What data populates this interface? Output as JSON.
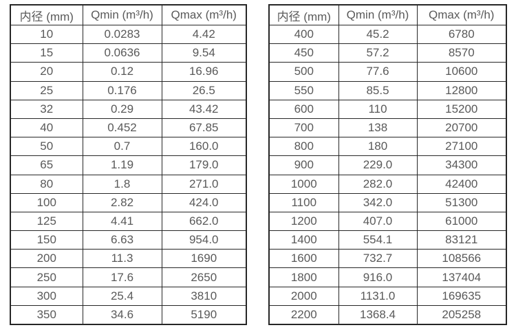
{
  "page": {
    "background_color": "#ffffff",
    "text_color": "#595959",
    "border_color": "#262626"
  },
  "tables": [
    {
      "id": "spec-table-dn10-350",
      "headers": [
        "内径 (mm)",
        "Qmin (m³/h)",
        "Qmax (m³/h)"
      ],
      "rows": [
        [
          "10",
          "0.0283",
          "4.42"
        ],
        [
          "15",
          "0.0636",
          "9.54"
        ],
        [
          "20",
          "0.12",
          "16.96"
        ],
        [
          "25",
          "0.176",
          "26.5"
        ],
        [
          "32",
          "0.29",
          "43.42"
        ],
        [
          "40",
          "0.452",
          "67.85"
        ],
        [
          "50",
          "0.7",
          "160.0"
        ],
        [
          "65",
          "1.19",
          "179.0"
        ],
        [
          "80",
          "1.8",
          "271.0"
        ],
        [
          "100",
          "2.82",
          "424.0"
        ],
        [
          "125",
          "4.41",
          "662.0"
        ],
        [
          "150",
          "6.63",
          "954.0"
        ],
        [
          "200",
          "11.3",
          "1690"
        ],
        [
          "250",
          "17.6",
          "2650"
        ],
        [
          "300",
          "25.4",
          "3810"
        ],
        [
          "350",
          "34.6",
          "5190"
        ]
      ]
    },
    {
      "id": "spec-table-dn400-2200",
      "headers": [
        "内径 (mm)",
        "Qmin (m³/h)",
        "Qmax (m³/h)"
      ],
      "rows": [
        [
          "400",
          "45.2",
          "6780"
        ],
        [
          "450",
          "57.2",
          "8570"
        ],
        [
          "500",
          "77.6",
          "10600"
        ],
        [
          "550",
          "85.5",
          "12800"
        ],
        [
          "600",
          "110",
          "15200"
        ],
        [
          "700",
          "138",
          "20700"
        ],
        [
          "800",
          "180",
          "27100"
        ],
        [
          "900",
          "229.0",
          "34300"
        ],
        [
          "1000",
          "282.0",
          "42400"
        ],
        [
          "1100",
          "342.0",
          "51300"
        ],
        [
          "1200",
          "407.0",
          "61000"
        ],
        [
          "1400",
          "554.1",
          "83121"
        ],
        [
          "1600",
          "732.7",
          "108566"
        ],
        [
          "1800",
          "916.0",
          "137404"
        ],
        [
          "2000",
          "1131.0",
          "169635"
        ],
        [
          "2200",
          "1368.4",
          "205258"
        ]
      ]
    }
  ]
}
